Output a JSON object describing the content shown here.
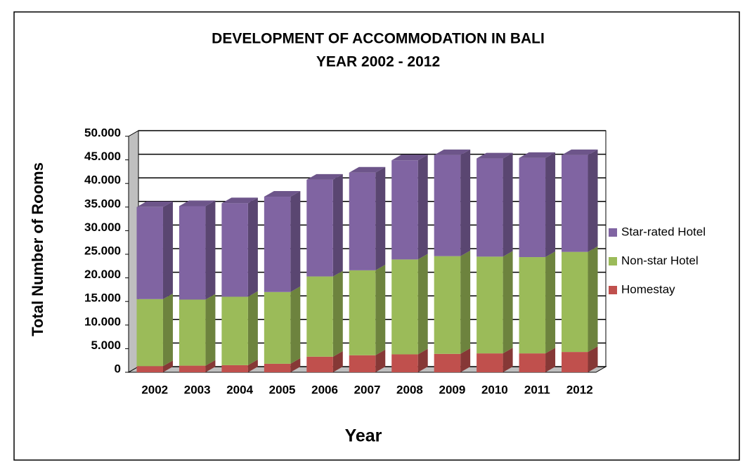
{
  "chart_data": {
    "type": "stacked-bar-3d",
    "title": "DEVELOPMENT OF ACCOMMODATION IN BALI",
    "subtitle": "YEAR 2002 - 2012",
    "x_label": "Year",
    "y_label": "Total Number of Rooms",
    "categories": [
      "2002",
      "2003",
      "2004",
      "2005",
      "2006",
      "2007",
      "2008",
      "2009",
      "2010",
      "2011",
      "2012"
    ],
    "series": [
      {
        "name": "Homestay",
        "color": "#c0504d",
        "values": [
          1300,
          1400,
          1500,
          1800,
          3300,
          3600,
          3800,
          3900,
          4000,
          4000,
          4300
        ]
      },
      {
        "name": "Non-star Hotel",
        "color": "#9bbb59",
        "values": [
          14200,
          14000,
          14500,
          15200,
          17000,
          18000,
          20100,
          20700,
          20500,
          20400,
          21200
        ]
      },
      {
        "name": "Star-rated Hotel",
        "color": "#8064a2",
        "values": [
          19500,
          19800,
          19800,
          20200,
          20500,
          20700,
          21000,
          21400,
          20800,
          21000,
          20500
        ]
      }
    ],
    "ylim": [
      0,
      50000
    ],
    "yticks": [
      0,
      {
        "value": 5000,
        "label": "5.000"
      },
      {
        "value": 10000,
        "label": "10.000"
      },
      {
        "value": 15000,
        "label": "15.000"
      },
      {
        "value": 20000,
        "label": "20.000"
      },
      {
        "value": 25000,
        "label": "25.000"
      },
      {
        "value": 30000,
        "label": "30.000"
      },
      {
        "value": 35000,
        "label": "35.000"
      },
      {
        "value": 40000,
        "label": "40.000"
      },
      {
        "value": 45000,
        "label": "45.000"
      },
      {
        "value": 50000,
        "label": "50.000"
      }
    ],
    "grid": true,
    "legend": "right"
  }
}
